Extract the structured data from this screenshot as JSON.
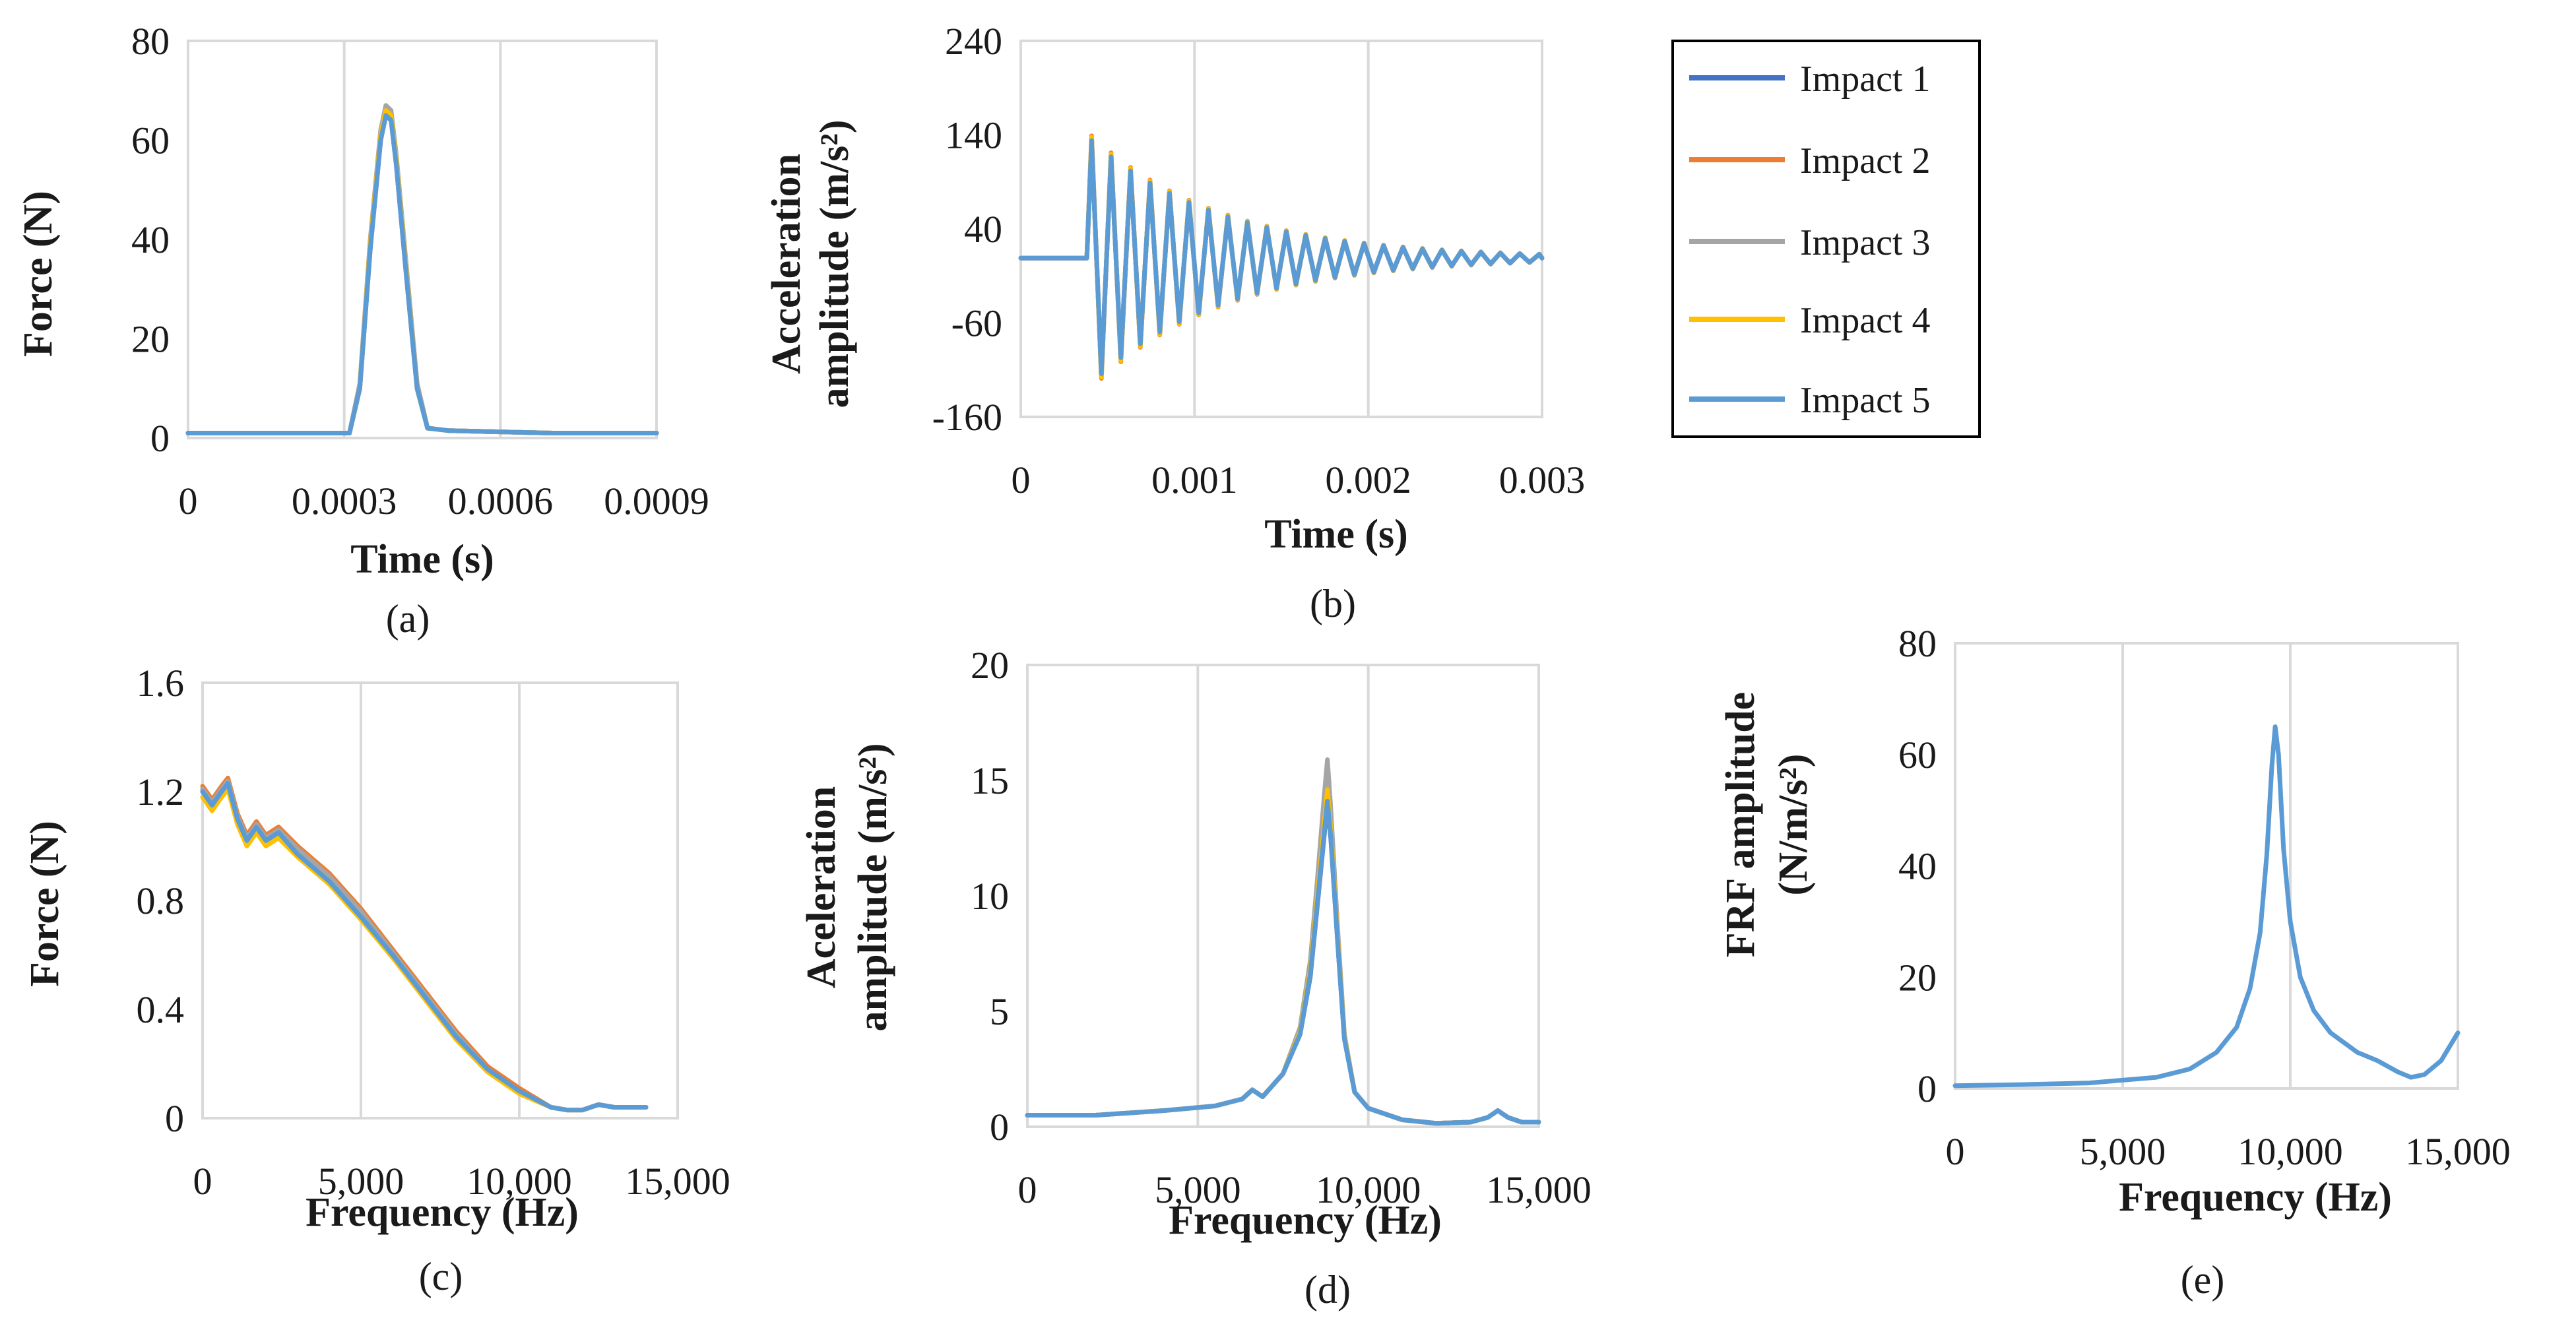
{
  "figure": {
    "legend": {
      "entries": [
        {
          "name": "Impact 1",
          "color": "#4472C4"
        },
        {
          "name": "Impact 2",
          "color": "#ED7D31"
        },
        {
          "name": "Impact 3",
          "color": "#A5A5A5"
        },
        {
          "name": "Impact 4",
          "color": "#FFC000"
        },
        {
          "name": "Impact 5",
          "color": "#5B9BD5"
        }
      ]
    }
  },
  "chart_data": [
    {
      "id": "a",
      "type": "line",
      "caption": "(a)",
      "xlabel": "Time (s)",
      "ylabel_lines": [
        "Force (N)"
      ],
      "xlim": [
        0,
        0.0009
      ],
      "ylim": [
        0,
        80
      ],
      "xticks": [
        0,
        0.0003,
        0.0006,
        0.0009
      ],
      "xtick_labels": [
        "0",
        "0.0003",
        "0.0006",
        "0.0009"
      ],
      "yticks": [
        0,
        20,
        40,
        60,
        80
      ],
      "ytick_labels": [
        "0",
        "20",
        "40",
        "60",
        "80"
      ],
      "x_gridlines": [
        0.0003,
        0.0006
      ],
      "series": [
        {
          "name": "Impact 1",
          "x": [
            0,
            0.00031,
            0.00033,
            0.00035,
            0.00037,
            0.00038,
            0.00039,
            0.0004,
            0.00042,
            0.00044,
            0.00046,
            0.0005,
            0.0007,
            0.0009
          ],
          "y": [
            1,
            1,
            10,
            38,
            60,
            65,
            64,
            55,
            32,
            10,
            2,
            1.5,
            1,
            1
          ]
        },
        {
          "name": "Impact 2",
          "x": [
            0,
            0.00031,
            0.00033,
            0.00035,
            0.00037,
            0.00038,
            0.00039,
            0.0004,
            0.00042,
            0.00044,
            0.00046,
            0.0005,
            0.0007,
            0.0009
          ],
          "y": [
            1,
            1,
            10,
            39,
            61,
            66,
            65,
            56,
            33,
            11,
            2,
            1.5,
            1,
            1
          ]
        },
        {
          "name": "Impact 3",
          "x": [
            0,
            0.00031,
            0.00033,
            0.00035,
            0.00037,
            0.00038,
            0.00039,
            0.0004,
            0.00042,
            0.00044,
            0.00046,
            0.0005,
            0.0007,
            0.0009
          ],
          "y": [
            1,
            1,
            11,
            40,
            62,
            67,
            66,
            57,
            34,
            11,
            2,
            1.5,
            1,
            1
          ]
        },
        {
          "name": "Impact 4",
          "x": [
            0,
            0.00031,
            0.00033,
            0.00035,
            0.00037,
            0.00038,
            0.00039,
            0.0004,
            0.00042,
            0.00044,
            0.00046,
            0.0005,
            0.0007,
            0.0009
          ],
          "y": [
            1,
            1,
            10,
            39,
            61,
            66,
            65,
            56,
            33,
            10,
            2,
            1.5,
            1,
            1
          ]
        },
        {
          "name": "Impact 5",
          "x": [
            0,
            0.00031,
            0.00033,
            0.00035,
            0.00037,
            0.00038,
            0.00039,
            0.0004,
            0.00042,
            0.00044,
            0.00046,
            0.0005,
            0.0007,
            0.0009
          ],
          "y": [
            1,
            1,
            10,
            38,
            60,
            65,
            64,
            55,
            32,
            10,
            2,
            1.5,
            1,
            1
          ]
        }
      ]
    },
    {
      "id": "b",
      "type": "line",
      "caption": "(b)",
      "xlabel": "Time (s)",
      "ylabel_lines": [
        "Acceleration",
        "amplitude (m/s²)"
      ],
      "xlim": [
        0,
        0.003
      ],
      "ylim": [
        -160,
        240
      ],
      "xticks": [
        0,
        0.001,
        0.002,
        0.003
      ],
      "xtick_labels": [
        "0",
        "0.001",
        "0.002",
        "0.003"
      ],
      "yticks": [
        -160,
        -60,
        40,
        140,
        240
      ],
      "ytick_labels": [
        "-160",
        "-60",
        "40",
        "140",
        "240"
      ],
      "x_gridlines": [
        0.001,
        0.002
      ],
      "oscillation": {
        "baseline": 9,
        "onset_s": 0.00038,
        "peak_positive": 140,
        "peak_negative": -130,
        "period_s": 0.000112,
        "decay_time_s": 0.00075,
        "end_s": 0.003
      },
      "series": [
        {
          "name": "Impact 1",
          "amplitude_scale": 0.98
        },
        {
          "name": "Impact 2",
          "amplitude_scale": 1.03
        },
        {
          "name": "Impact 3",
          "amplitude_scale": 1.0
        },
        {
          "name": "Impact 4",
          "amplitude_scale": 1.02
        },
        {
          "name": "Impact 5",
          "amplitude_scale": 0.99
        }
      ]
    },
    {
      "id": "c",
      "type": "line",
      "caption": "(c)",
      "xlabel": "Frequency (Hz)",
      "ylabel_lines": [
        "Force (N)"
      ],
      "xlim": [
        0,
        15000
      ],
      "ylim": [
        0,
        1.6
      ],
      "xticks": [
        0,
        5000,
        10000,
        15000
      ],
      "xtick_labels": [
        "0",
        "5,000",
        "10,000",
        "15,000"
      ],
      "yticks": [
        0,
        0.4,
        0.8,
        1.2,
        1.6
      ],
      "ytick_labels": [
        "0",
        "0.4",
        "0.8",
        "1.2",
        "1.6"
      ],
      "x_gridlines": [
        5000,
        10000
      ],
      "series": [
        {
          "name": "Impact 1",
          "x": [
            0,
            300,
            600,
            800,
            1100,
            1400,
            1700,
            2000,
            2400,
            3000,
            3500,
            4000,
            5000,
            6000,
            7000,
            8000,
            9000,
            10000,
            11000,
            11500,
            12000,
            12500,
            13000,
            13500,
            14000
          ],
          "y": [
            1.2,
            1.15,
            1.2,
            1.23,
            1.1,
            1.02,
            1.07,
            1.02,
            1.05,
            0.98,
            0.93,
            0.88,
            0.75,
            0.6,
            0.45,
            0.3,
            0.18,
            0.1,
            0.04,
            0.03,
            0.03,
            0.05,
            0.04,
            0.04,
            0.04
          ]
        },
        {
          "name": "Impact 2",
          "x": [
            0,
            300,
            600,
            800,
            1100,
            1400,
            1700,
            2000,
            2400,
            3000,
            3500,
            4000,
            5000,
            6000,
            7000,
            8000,
            9000,
            10000,
            11000,
            11500,
            12000,
            12500,
            13000,
            13500,
            14000
          ],
          "y": [
            1.22,
            1.17,
            1.22,
            1.25,
            1.12,
            1.04,
            1.09,
            1.04,
            1.07,
            1.0,
            0.95,
            0.9,
            0.77,
            0.62,
            0.47,
            0.32,
            0.19,
            0.11,
            0.04,
            0.03,
            0.03,
            0.05,
            0.04,
            0.04,
            0.04
          ]
        },
        {
          "name": "Impact 3",
          "x": [
            0,
            300,
            600,
            800,
            1100,
            1400,
            1700,
            2000,
            2400,
            3000,
            3500,
            4000,
            5000,
            6000,
            7000,
            8000,
            9000,
            10000,
            11000,
            11500,
            12000,
            12500,
            13000,
            13500,
            14000
          ],
          "y": [
            1.21,
            1.16,
            1.21,
            1.24,
            1.11,
            1.03,
            1.08,
            1.03,
            1.06,
            0.99,
            0.94,
            0.89,
            0.76,
            0.61,
            0.46,
            0.31,
            0.18,
            0.1,
            0.04,
            0.03,
            0.03,
            0.05,
            0.04,
            0.04,
            0.04
          ]
        },
        {
          "name": "Impact 4",
          "x": [
            0,
            300,
            600,
            800,
            1100,
            1400,
            1700,
            2000,
            2400,
            3000,
            3500,
            4000,
            5000,
            6000,
            7000,
            8000,
            9000,
            10000,
            11000,
            11500,
            12000,
            12500,
            13000,
            13500,
            14000
          ],
          "y": [
            1.18,
            1.13,
            1.18,
            1.21,
            1.08,
            1.0,
            1.05,
            1.0,
            1.03,
            0.96,
            0.91,
            0.86,
            0.73,
            0.59,
            0.44,
            0.29,
            0.17,
            0.09,
            0.04,
            0.03,
            0.03,
            0.05,
            0.04,
            0.04,
            0.04
          ]
        },
        {
          "name": "Impact 5",
          "x": [
            0,
            300,
            600,
            800,
            1100,
            1400,
            1700,
            2000,
            2400,
            3000,
            3500,
            4000,
            5000,
            6000,
            7000,
            8000,
            9000,
            10000,
            11000,
            11500,
            12000,
            12500,
            13000,
            13500,
            14000
          ],
          "y": [
            1.2,
            1.15,
            1.2,
            1.23,
            1.1,
            1.02,
            1.07,
            1.02,
            1.05,
            0.97,
            0.92,
            0.87,
            0.74,
            0.6,
            0.45,
            0.3,
            0.18,
            0.1,
            0.04,
            0.03,
            0.03,
            0.05,
            0.04,
            0.04,
            0.04
          ]
        }
      ]
    },
    {
      "id": "d",
      "type": "line",
      "caption": "(d)",
      "xlabel": "Frequency (Hz)",
      "ylabel_lines": [
        "Aceleration",
        "amplitude (m/s²)"
      ],
      "xlim": [
        0,
        15000
      ],
      "ylim": [
        0,
        20
      ],
      "xticks": [
        0,
        5000,
        10000,
        15000
      ],
      "xtick_labels": [
        "0",
        "5,000",
        "10,000",
        "15,000"
      ],
      "yticks": [
        0,
        5,
        10,
        15,
        20
      ],
      "ytick_labels": [
        "0",
        "5",
        "10",
        "15",
        "20"
      ],
      "x_gridlines": [
        5000,
        10000
      ],
      "series": [
        {
          "name": "Impact 1",
          "x": [
            0,
            2000,
            4000,
            5500,
            6300,
            6600,
            6900,
            7500,
            8000,
            8300,
            8500,
            8700,
            8800,
            8900,
            9100,
            9300,
            9600,
            10000,
            11000,
            12000,
            13000,
            13500,
            13800,
            14100,
            14500,
            15000
          ],
          "y": [
            0.5,
            0.5,
            0.7,
            0.9,
            1.2,
            1.6,
            1.3,
            2.3,
            4.0,
            6.5,
            9.5,
            12.5,
            14.0,
            12.5,
            8.0,
            3.8,
            1.5,
            0.8,
            0.3,
            0.15,
            0.2,
            0.4,
            0.7,
            0.4,
            0.2,
            0.2
          ]
        },
        {
          "name": "Impact 2",
          "x": [
            0,
            2000,
            4000,
            5500,
            6300,
            6600,
            6900,
            7500,
            8000,
            8300,
            8500,
            8700,
            8800,
            8900,
            9100,
            9300,
            9600,
            10000,
            11000,
            12000,
            13000,
            13500,
            13800,
            14100,
            14500,
            15000
          ],
          "y": [
            0.5,
            0.5,
            0.7,
            0.9,
            1.2,
            1.6,
            1.3,
            2.3,
            4.2,
            7.0,
            10.2,
            13.5,
            15.2,
            13.3,
            8.4,
            3.9,
            1.5,
            0.8,
            0.3,
            0.15,
            0.2,
            0.4,
            0.7,
            0.4,
            0.2,
            0.2
          ]
        },
        {
          "name": "Impact 3",
          "x": [
            0,
            2000,
            4000,
            5500,
            6300,
            6600,
            6900,
            7500,
            8000,
            8300,
            8500,
            8700,
            8800,
            8900,
            9100,
            9300,
            9600,
            10000,
            11000,
            12000,
            13000,
            13500,
            13800,
            14100,
            14500,
            15000
          ],
          "y": [
            0.5,
            0.5,
            0.7,
            0.9,
            1.2,
            1.6,
            1.3,
            2.3,
            4.3,
            7.2,
            10.6,
            14.2,
            15.9,
            13.8,
            8.6,
            4.0,
            1.5,
            0.8,
            0.3,
            0.15,
            0.2,
            0.4,
            0.7,
            0.4,
            0.2,
            0.2
          ]
        },
        {
          "name": "Impact 4",
          "x": [
            0,
            2000,
            4000,
            5500,
            6300,
            6600,
            6900,
            7500,
            8000,
            8300,
            8500,
            8700,
            8800,
            8900,
            9100,
            9300,
            9600,
            10000,
            11000,
            12000,
            13000,
            13500,
            13800,
            14100,
            14500,
            15000
          ],
          "y": [
            0.5,
            0.5,
            0.7,
            0.9,
            1.2,
            1.6,
            1.3,
            2.3,
            4.1,
            6.8,
            9.9,
            13.0,
            14.6,
            12.9,
            8.2,
            3.9,
            1.5,
            0.8,
            0.3,
            0.15,
            0.2,
            0.4,
            0.7,
            0.4,
            0.2,
            0.2
          ]
        },
        {
          "name": "Impact 5",
          "x": [
            0,
            2000,
            4000,
            5500,
            6300,
            6600,
            6900,
            7500,
            8000,
            8300,
            8500,
            8700,
            8800,
            8900,
            9100,
            9300,
            9600,
            10000,
            11000,
            12000,
            13000,
            13500,
            13800,
            14100,
            14500,
            15000
          ],
          "y": [
            0.5,
            0.5,
            0.7,
            0.9,
            1.2,
            1.6,
            1.3,
            2.3,
            4.0,
            6.6,
            9.6,
            12.6,
            14.1,
            12.6,
            8.0,
            3.8,
            1.5,
            0.8,
            0.3,
            0.15,
            0.2,
            0.4,
            0.7,
            0.4,
            0.2,
            0.2
          ]
        }
      ]
    },
    {
      "id": "e",
      "type": "line",
      "caption": "(e)",
      "xlabel": "Frequency (Hz)",
      "ylabel_lines": [
        "FRF amplitude",
        "(N/m/s²)"
      ],
      "xlim": [
        0,
        15000
      ],
      "ylim": [
        0,
        80
      ],
      "xticks": [
        0,
        5000,
        10000,
        15000
      ],
      "xtick_labels": [
        "0",
        "5,000",
        "10,000",
        "15,000"
      ],
      "yticks": [
        0,
        20,
        40,
        60,
        80
      ],
      "ytick_labels": [
        "0",
        "20",
        "40",
        "60",
        "80"
      ],
      "x_gridlines": [
        5000,
        10000
      ],
      "series": [
        {
          "name": "Impact 5",
          "x": [
            0,
            2000,
            4000,
            6000,
            7000,
            7800,
            8400,
            8800,
            9100,
            9300,
            9450,
            9550,
            9650,
            9800,
            10000,
            10300,
            10700,
            11200,
            12000,
            12600,
            13200,
            13600,
            14000,
            14500,
            15000
          ],
          "y": [
            0.5,
            0.7,
            1.0,
            2.0,
            3.5,
            6.5,
            11.0,
            18.0,
            28.0,
            42.0,
            58.0,
            65.0,
            60.0,
            43.0,
            30.0,
            20.0,
            14.0,
            10.0,
            6.5,
            5.0,
            3.0,
            2.0,
            2.5,
            5.0,
            10.0
          ]
        }
      ]
    }
  ]
}
